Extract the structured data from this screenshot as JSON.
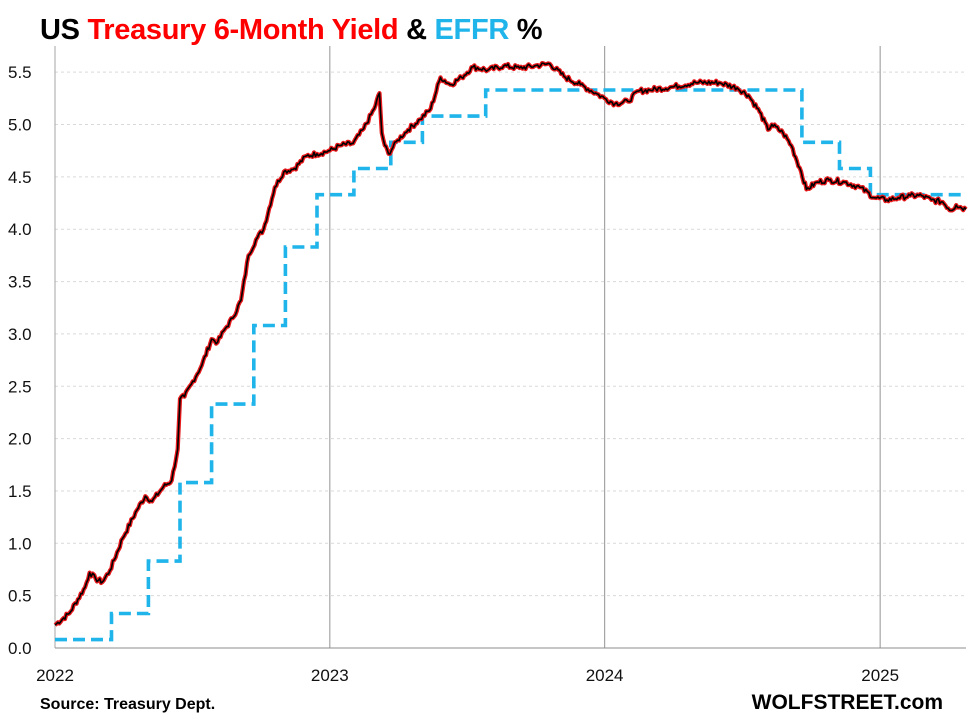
{
  "title": {
    "part1": "US ",
    "part2": "Treasury 6-Month Yield",
    "part3": " & ",
    "part4": "EFFR",
    "part5": " %"
  },
  "source": "Source: Treasury Dept.",
  "brand": "WOLFSTREET.com",
  "colors": {
    "treasury_outer": "#e8181b",
    "treasury_inner": "#000000",
    "effr": "#1fb4ea",
    "grid": "#d9d9d9",
    "year_line": "#a6a6a6"
  },
  "chart_data": {
    "type": "line",
    "title": "US Treasury 6-Month Yield & EFFR %",
    "xlabel": "",
    "ylabel": "",
    "ylim": [
      0,
      5.75
    ],
    "xlim": [
      "2022-01-01",
      "2025-04-25"
    ],
    "x_ticks": [
      "2022",
      "2023",
      "2024",
      "2025"
    ],
    "y_ticks": [
      "0.0",
      "0.5",
      "1.0",
      "1.5",
      "2.0",
      "2.5",
      "3.0",
      "3.5",
      "4.0",
      "4.5",
      "5.0",
      "5.5"
    ],
    "grid": "horizontal dashed, vertical lines at year starts",
    "legend": "none",
    "series": [
      {
        "name": "Treasury 6-Month Yield",
        "style": "red line with black core",
        "points": [
          [
            "2022-01-01",
            0.22
          ],
          [
            "2022-01-20",
            0.33
          ],
          [
            "2022-02-10",
            0.58
          ],
          [
            "2022-02-16",
            0.72
          ],
          [
            "2022-02-24",
            0.66
          ],
          [
            "2022-03-05",
            0.63
          ],
          [
            "2022-03-15",
            0.74
          ],
          [
            "2022-04-01",
            1.05
          ],
          [
            "2022-04-20",
            1.32
          ],
          [
            "2022-05-01",
            1.45
          ],
          [
            "2022-05-10",
            1.4
          ],
          [
            "2022-05-25",
            1.54
          ],
          [
            "2022-06-05",
            1.6
          ],
          [
            "2022-06-13",
            1.9
          ],
          [
            "2022-06-16",
            2.38
          ],
          [
            "2022-06-22",
            2.4
          ],
          [
            "2022-07-01",
            2.52
          ],
          [
            "2022-07-15",
            2.7
          ],
          [
            "2022-07-28",
            2.95
          ],
          [
            "2022-08-05",
            2.92
          ],
          [
            "2022-08-15",
            3.05
          ],
          [
            "2022-08-25",
            3.15
          ],
          [
            "2022-09-05",
            3.32
          ],
          [
            "2022-09-15",
            3.75
          ],
          [
            "2022-09-25",
            3.9
          ],
          [
            "2022-10-05",
            4.0
          ],
          [
            "2022-10-20",
            4.4
          ],
          [
            "2022-11-01",
            4.55
          ],
          [
            "2022-11-15",
            4.58
          ],
          [
            "2022-12-01",
            4.7
          ],
          [
            "2022-12-15",
            4.72
          ],
          [
            "2023-01-01",
            4.75
          ],
          [
            "2023-01-15",
            4.8
          ],
          [
            "2023-02-01",
            4.82
          ],
          [
            "2023-02-15",
            4.96
          ],
          [
            "2023-03-01",
            5.15
          ],
          [
            "2023-03-08",
            5.3
          ],
          [
            "2023-03-11",
            4.92
          ],
          [
            "2023-03-15",
            4.8
          ],
          [
            "2023-03-20",
            4.72
          ],
          [
            "2023-04-01",
            4.85
          ],
          [
            "2023-04-15",
            4.95
          ],
          [
            "2023-05-01",
            5.05
          ],
          [
            "2023-05-15",
            5.15
          ],
          [
            "2023-05-28",
            5.45
          ],
          [
            "2023-06-10",
            5.38
          ],
          [
            "2023-06-25",
            5.45
          ],
          [
            "2023-07-10",
            5.55
          ],
          [
            "2023-07-30",
            5.52
          ],
          [
            "2023-08-20",
            5.56
          ],
          [
            "2023-09-10",
            5.54
          ],
          [
            "2023-09-30",
            5.56
          ],
          [
            "2023-10-20",
            5.58
          ],
          [
            "2023-11-10",
            5.45
          ],
          [
            "2023-11-30",
            5.38
          ],
          [
            "2023-12-20",
            5.3
          ],
          [
            "2024-01-01",
            5.25
          ],
          [
            "2024-01-15",
            5.2
          ],
          [
            "2024-02-01",
            5.22
          ],
          [
            "2024-02-15",
            5.32
          ],
          [
            "2024-03-01",
            5.33
          ],
          [
            "2024-04-01",
            5.36
          ],
          [
            "2024-05-01",
            5.4
          ],
          [
            "2024-06-01",
            5.4
          ],
          [
            "2024-06-25",
            5.35
          ],
          [
            "2024-07-10",
            5.28
          ],
          [
            "2024-07-25",
            5.12
          ],
          [
            "2024-08-05",
            4.95
          ],
          [
            "2024-08-10",
            5.0
          ],
          [
            "2024-08-25",
            4.92
          ],
          [
            "2024-09-05",
            4.8
          ],
          [
            "2024-09-18",
            4.55
          ],
          [
            "2024-09-25",
            4.38
          ],
          [
            "2024-10-10",
            4.45
          ],
          [
            "2024-10-25",
            4.47
          ],
          [
            "2024-11-15",
            4.45
          ],
          [
            "2024-12-05",
            4.4
          ],
          [
            "2024-12-25",
            4.3
          ],
          [
            "2025-01-10",
            4.28
          ],
          [
            "2025-01-25",
            4.3
          ],
          [
            "2025-02-10",
            4.32
          ],
          [
            "2025-02-25",
            4.32
          ],
          [
            "2025-03-10",
            4.28
          ],
          [
            "2025-03-25",
            4.26
          ],
          [
            "2025-04-05",
            4.18
          ],
          [
            "2025-04-12",
            4.23
          ],
          [
            "2025-04-25",
            4.19
          ]
        ]
      },
      {
        "name": "EFFR",
        "style": "dashed step",
        "points": [
          [
            "2022-01-01",
            0.08
          ],
          [
            "2022-03-17",
            0.33
          ],
          [
            "2022-05-05",
            0.83
          ],
          [
            "2022-06-16",
            1.58
          ],
          [
            "2022-07-28",
            2.33
          ],
          [
            "2022-09-22",
            3.08
          ],
          [
            "2022-11-03",
            3.83
          ],
          [
            "2022-12-15",
            4.33
          ],
          [
            "2023-02-02",
            4.58
          ],
          [
            "2023-03-23",
            4.83
          ],
          [
            "2023-05-04",
            5.08
          ],
          [
            "2023-07-27",
            5.33
          ],
          [
            "2024-09-19",
            4.83
          ],
          [
            "2024-11-08",
            4.58
          ],
          [
            "2024-12-19",
            4.33
          ],
          [
            "2025-04-25",
            4.33
          ]
        ]
      }
    ]
  }
}
